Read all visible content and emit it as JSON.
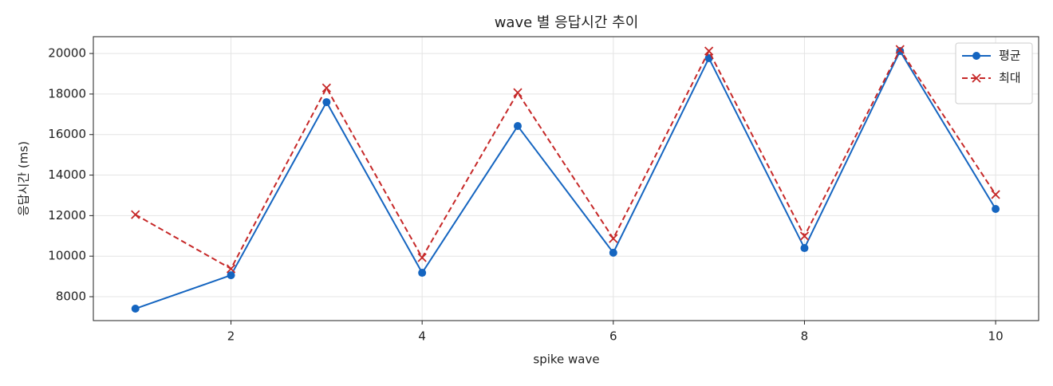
{
  "chart_data": {
    "type": "line",
    "title": "wave 별 응답시간 추이",
    "x_label": "spike wave",
    "y_label": "응답시간 (ms)",
    "x": [
      1,
      2,
      3,
      4,
      5,
      6,
      7,
      8,
      9,
      10
    ],
    "series": [
      {
        "name": "평균",
        "color": "#1565c0",
        "marker": "circle",
        "dash": "solid",
        "values": [
          7410,
          9060,
          17600,
          9180,
          16420,
          10170,
          19770,
          10400,
          20120,
          12330
        ]
      },
      {
        "name": "최대",
        "color": "#c62828",
        "marker": "x",
        "dash": "dashed",
        "values": [
          12050,
          9380,
          18300,
          9930,
          18070,
          10870,
          20120,
          10990,
          20200,
          13040
        ]
      }
    ],
    "xlim": [
      0.56,
      10.45
    ],
    "xticks": [
      2,
      4,
      6,
      8,
      10
    ],
    "ylim": [
      6820,
      20830
    ],
    "yticks": [
      8000,
      10000,
      12000,
      14000,
      16000,
      18000,
      20000
    ],
    "grid": true,
    "legend": "upper right"
  }
}
